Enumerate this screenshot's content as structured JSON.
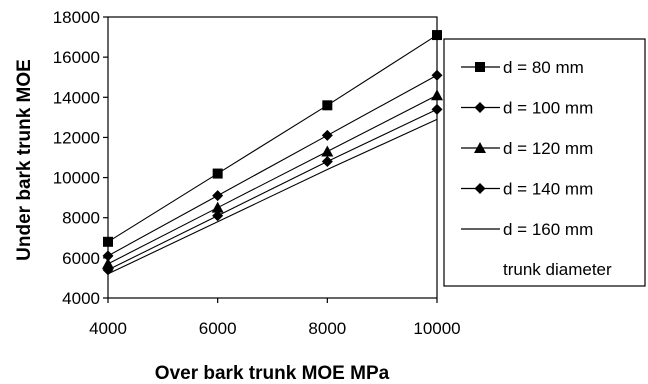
{
  "chart_data": {
    "type": "line",
    "title": "",
    "xlabel": "Over bark trunk MOE MPa",
    "ylabel": "Under bark trunk MOE",
    "x": [
      4000,
      6000,
      8000,
      10000
    ],
    "xlim": [
      4000,
      10000
    ],
    "ylim": [
      4000,
      18000
    ],
    "x_ticks": [
      "4000",
      "6000",
      "8000",
      "10000"
    ],
    "y_ticks": [
      "4000",
      "6000",
      "8000",
      "10000",
      "12000",
      "14000",
      "16000",
      "18000"
    ],
    "grid": false,
    "legend_position": "right",
    "legend_title": "trunk diameter",
    "series": [
      {
        "name": "d = 80 mm",
        "marker": "square",
        "values": [
          6800,
          10200,
          13600,
          17100
        ]
      },
      {
        "name": "d = 100 mm",
        "marker": "diamond",
        "values": [
          6100,
          9100,
          12100,
          15100
        ]
      },
      {
        "name": "d = 120 mm",
        "marker": "triangle",
        "values": [
          5700,
          8500,
          11300,
          14100
        ]
      },
      {
        "name": "d = 140 mm",
        "marker": "diamond",
        "values": [
          5400,
          8100,
          10800,
          13400
        ]
      },
      {
        "name": "d = 160 mm",
        "marker": "none",
        "values": [
          5200,
          7800,
          10400,
          12900
        ]
      }
    ],
    "colors": {
      "line": "#000000",
      "background": "#ffffff"
    }
  }
}
